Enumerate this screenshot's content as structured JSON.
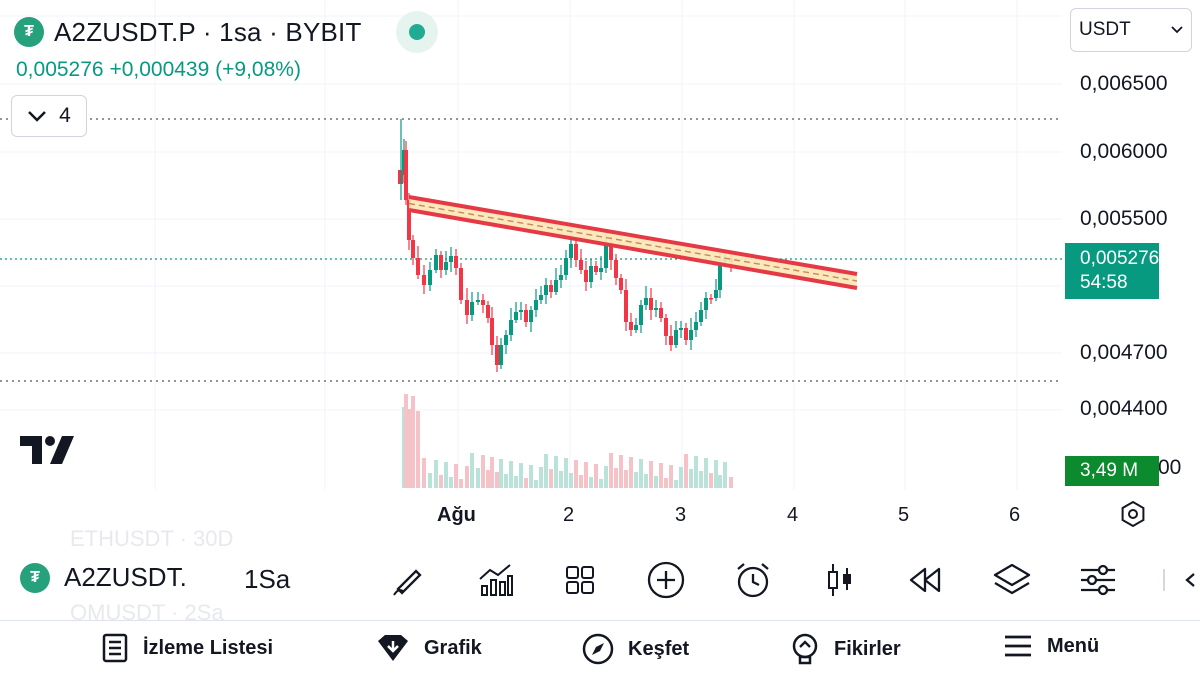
{
  "header": {
    "symbol_title": "A2ZUSDT.P · 1sa · BYBIT",
    "price": "0,005276",
    "change": "+0,000439",
    "change_pct": "(+9,08%)",
    "collapse_count": "4",
    "currency": "USDT",
    "symbol_icon": "tether-icon"
  },
  "price_axis": {
    "labels": [
      "0,006500",
      "0,006000",
      "0,005500",
      "0,004700",
      "0,004400",
      "00"
    ],
    "current_price": "0,005276",
    "countdown": "54:58",
    "volume": "3,49 M"
  },
  "time_axis": {
    "labels": [
      "Ağu",
      "2",
      "3",
      "4",
      "5",
      "6"
    ]
  },
  "chart_data": {
    "type": "candlestick",
    "interval": "1h",
    "visible_high": 0.00622,
    "visible_low": 0.00462,
    "last_price": 0.005276,
    "trendline": {
      "from": {
        "x": "Ağu",
        "y": 0.00568
      },
      "to": {
        "x": "4+",
        "y": 0.00508
      }
    },
    "colors": {
      "up": "#089981",
      "down": "#f23645",
      "trendline": "#e53945"
    }
  },
  "toolbar": {
    "symbol": "A2ZUSDT.",
    "timeframe": "1Sa",
    "ghost_top": "ETHUSDT · 30D",
    "ghost_bottom": "OMUSDT · 2Sa",
    "tools": [
      "pencil-icon",
      "indicators-icon",
      "templates-icon",
      "add-icon",
      "alarm-icon",
      "candles-icon",
      "replay-icon",
      "layers-icon",
      "settings-icon",
      "collapse-icon"
    ]
  },
  "bottom_nav": {
    "watchlist": "İzleme Listesi",
    "chart": "Grafik",
    "explore": "Keşfet",
    "ideas": "Fikirler",
    "menu": "Menü"
  }
}
